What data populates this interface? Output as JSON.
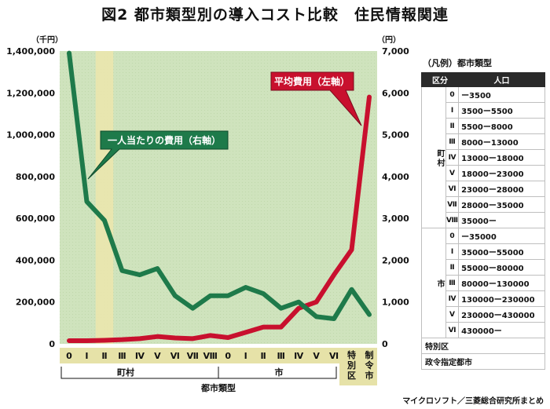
{
  "title": "図2 都市類型別の導入コスト比較　住民情報関連",
  "source": "マイクロソフト／三菱総合研究所まとめ",
  "colors": {
    "red_series": "#c8102e",
    "green_series": "#1e7a4a",
    "grid_bg": "#cfe3bd",
    "highlight_band": "#ece6ad"
  },
  "chart_data": {
    "type": "line",
    "title": "図2 都市類型別の導入コスト比較　住民情報関連",
    "xlabel": "都市類型",
    "left_unit": "（千円）",
    "right_unit": "（円）",
    "ylim_left": [
      0,
      1400000
    ],
    "ylim_right": [
      0,
      7000
    ],
    "left_ticks": [
      "1,400,000",
      "1,200,000",
      "1,000,000",
      "800,000",
      "600,000",
      "400,000",
      "200,000",
      "0"
    ],
    "right_ticks": [
      "7,000",
      "6,000",
      "5,000",
      "4,000",
      "3,000",
      "2,000",
      "1,000",
      "0"
    ],
    "categories": [
      "0",
      "Ⅰ",
      "Ⅱ",
      "Ⅲ",
      "Ⅳ",
      "Ⅴ",
      "Ⅵ",
      "Ⅶ",
      "Ⅷ",
      "0",
      "Ⅰ",
      "Ⅱ",
      "Ⅲ",
      "Ⅳ",
      "Ⅴ",
      "Ⅵ",
      "特別区",
      "制令市"
    ],
    "groups": [
      {
        "label": "町村"
      },
      {
        "label": "市"
      }
    ],
    "highlight_category_index": 2,
    "series": [
      {
        "name": "平均費用（左軸）",
        "axis": "left",
        "color": "#c8102e",
        "values": [
          15000,
          15000,
          17000,
          20000,
          25000,
          35000,
          28000,
          25000,
          40000,
          30000,
          55000,
          80000,
          80000,
          170000,
          200000,
          330000,
          450000,
          1180000
        ]
      },
      {
        "name": "一人当たりの費用（右軸）",
        "axis": "right",
        "color": "#1e7a4a",
        "values": [
          6950,
          3400,
          2950,
          1750,
          1650,
          1800,
          1150,
          850,
          1150,
          1150,
          1350,
          1200,
          850,
          1000,
          650,
          600,
          1300,
          700
        ]
      }
    ],
    "grid": false
  },
  "legend": {
    "title": "（凡例）都市類型",
    "head_kubun": "区分",
    "head_jinko": "人口",
    "groups": [
      {
        "label": "町村",
        "rows": [
          {
            "cls": "0",
            "range": "ー3500"
          },
          {
            "cls": "Ⅰ",
            "range": "3500ー5500"
          },
          {
            "cls": "Ⅱ",
            "range": "5500ー8000"
          },
          {
            "cls": "Ⅲ",
            "range": "8000ー13000"
          },
          {
            "cls": "Ⅳ",
            "range": "13000ー18000"
          },
          {
            "cls": "Ⅴ",
            "range": "18000ー23000"
          },
          {
            "cls": "Ⅵ",
            "range": "23000ー28000"
          },
          {
            "cls": "Ⅶ",
            "range": "28000ー35000"
          },
          {
            "cls": "Ⅷ",
            "range": "35000ー"
          }
        ]
      },
      {
        "label": "市",
        "rows": [
          {
            "cls": "0",
            "range": "ー35000"
          },
          {
            "cls": "Ⅰ",
            "range": "35000ー55000"
          },
          {
            "cls": "Ⅱ",
            "range": "55000ー80000"
          },
          {
            "cls": "Ⅲ",
            "range": "80000ー130000"
          },
          {
            "cls": "Ⅳ",
            "range": "130000ー230000"
          },
          {
            "cls": "Ⅴ",
            "range": "230000ー430000"
          },
          {
            "cls": "Ⅵ",
            "range": "430000ー"
          }
        ]
      }
    ],
    "extra_rows": [
      "特別区",
      "政令指定都市"
    ]
  }
}
